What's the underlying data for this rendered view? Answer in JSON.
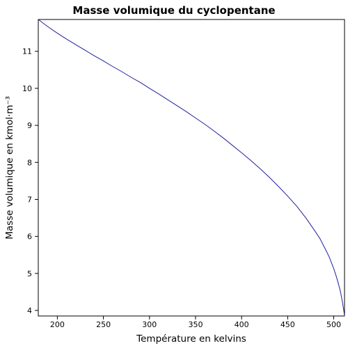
{
  "chart_data": {
    "type": "line",
    "title": "Masse volumique du cyclopentane",
    "xlabel": "Température en kelvins",
    "ylabel": "Masse volumique en kmol·m⁻³",
    "xlim": [
      179.3,
      511.7
    ],
    "ylim": [
      3.85,
      11.86
    ],
    "x_ticks": [
      200,
      250,
      300,
      350,
      400,
      450,
      500
    ],
    "y_ticks": [
      4,
      5,
      6,
      7,
      8,
      9,
      10,
      11
    ],
    "grid": false,
    "legend": "none",
    "series": [
      {
        "color": "#1f1f9e",
        "x": [
          179.3,
          190,
          200,
          210,
          220,
          230,
          240,
          250,
          260,
          270,
          280,
          290,
          300,
          310,
          320,
          330,
          340,
          350,
          360,
          370,
          380,
          390,
          400,
          410,
          420,
          430,
          440,
          450,
          460,
          470,
          480,
          485,
          490,
          495,
          500,
          503,
          505,
          507,
          509,
          510,
          511,
          511.7
        ],
        "y": [
          11.86,
          11.66,
          11.49,
          11.33,
          11.18,
          11.03,
          10.88,
          10.74,
          10.59,
          10.45,
          10.3,
          10.16,
          10.0,
          9.85,
          9.69,
          9.53,
          9.37,
          9.2,
          9.03,
          8.85,
          8.66,
          8.46,
          8.26,
          8.05,
          7.83,
          7.6,
          7.35,
          7.09,
          6.81,
          6.49,
          6.13,
          5.94,
          5.7,
          5.45,
          5.13,
          4.9,
          4.73,
          4.54,
          4.29,
          4.14,
          3.98,
          3.85
        ]
      }
    ]
  }
}
